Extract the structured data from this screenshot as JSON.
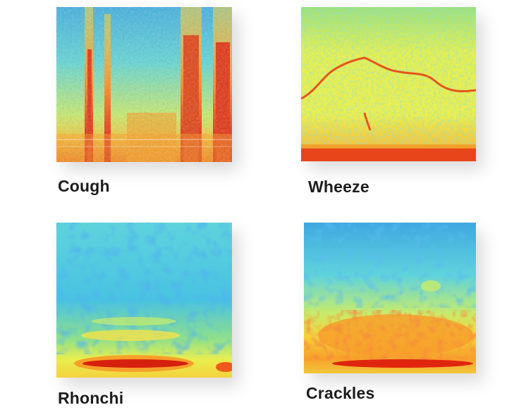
{
  "spectrograms": [
    {
      "id": "cough",
      "label": "Cough"
    },
    {
      "id": "wheeze",
      "label": "Wheeze"
    },
    {
      "id": "rhonchi",
      "label": "Rhonchi"
    },
    {
      "id": "crackles",
      "label": "Crackles"
    }
  ],
  "colormap": {
    "low": "#1a7fd0",
    "mid_low": "#3fd0e6",
    "mid": "#e8f04a",
    "mid_high": "#ff9a1a",
    "high": "#e01a10"
  }
}
